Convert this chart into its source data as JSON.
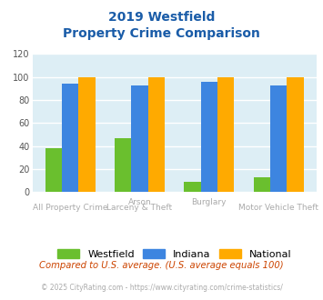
{
  "title_line1": "2019 Westfield",
  "title_line2": "Property Crime Comparison",
  "groups": [
    {
      "westfield": 38,
      "indiana": 94,
      "national": 100
    },
    {
      "westfield": 47,
      "indiana": 93,
      "national": 100
    },
    {
      "westfield": 9,
      "indiana": 96,
      "national": 100
    },
    {
      "westfield": 13,
      "indiana": 93,
      "national": 100
    }
  ],
  "top_labels": [
    "",
    "Arson",
    "Burglary",
    ""
  ],
  "bottom_labels": [
    "All Property Crime",
    "Larceny & Theft",
    "",
    "Motor Vehicle Theft"
  ],
  "color_westfield": "#6abf2e",
  "color_indiana": "#3d85e0",
  "color_national": "#ffaa00",
  "ylim": [
    0,
    120
  ],
  "yticks": [
    0,
    20,
    40,
    60,
    80,
    100,
    120
  ],
  "background_color": "#ddeef5",
  "grid_color": "#ffffff",
  "title_color": "#1a5ca8",
  "label_color": "#aaaaaa",
  "footnote1": "Compared to U.S. average. (U.S. average equals 100)",
  "footnote2": "© 2025 CityRating.com - https://www.cityrating.com/crime-statistics/",
  "footnote1_color": "#cc4400",
  "footnote2_color": "#aaaaaa",
  "legend_labels": [
    "Westfield",
    "Indiana",
    "National"
  ]
}
